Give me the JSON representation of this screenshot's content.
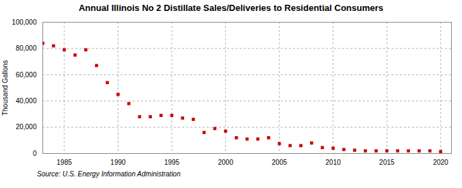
{
  "chart_data": {
    "type": "scatter",
    "title": "Annual Illinois No 2 Distillate Sales/Deliveries to Residential Consumers",
    "ylabel": "Thousand Gallons",
    "source": "Source: U.S. Energy Information Administration",
    "x": [
      1983,
      1984,
      1985,
      1986,
      1987,
      1988,
      1989,
      1990,
      1991,
      1992,
      1993,
      1994,
      1995,
      1996,
      1997,
      1998,
      1999,
      2000,
      2001,
      2002,
      2003,
      2004,
      2005,
      2006,
      2007,
      2008,
      2009,
      2010,
      2011,
      2012,
      2013,
      2014,
      2015,
      2016,
      2017,
      2018,
      2019,
      2020
    ],
    "values": [
      84000,
      82000,
      79000,
      75000,
      79000,
      67000,
      54000,
      45000,
      38000,
      28000,
      28000,
      29000,
      29000,
      27000,
      26000,
      16000,
      19000,
      17000,
      12000,
      11000,
      11000,
      12000,
      7500,
      6000,
      6000,
      8000,
      4500,
      4000,
      3000,
      2500,
      2000,
      2000,
      2000,
      2000,
      2000,
      2000,
      2000,
      1500
    ],
    "color": "#cc0000",
    "marker": "square",
    "xlim": [
      1983,
      2021
    ],
    "xticks": [
      1985,
      1990,
      1995,
      2000,
      2005,
      2010,
      2015,
      2020
    ],
    "ylim": [
      0,
      100000
    ],
    "yticks": [
      0,
      {
        "value": 20000,
        "label": "20,000"
      },
      {
        "value": 40000,
        "label": "40,000"
      },
      {
        "value": 60000,
        "label": "60,000"
      },
      {
        "value": 80000,
        "label": "80,000"
      },
      {
        "value": 100000,
        "label": "100,000"
      }
    ],
    "grid": true
  }
}
